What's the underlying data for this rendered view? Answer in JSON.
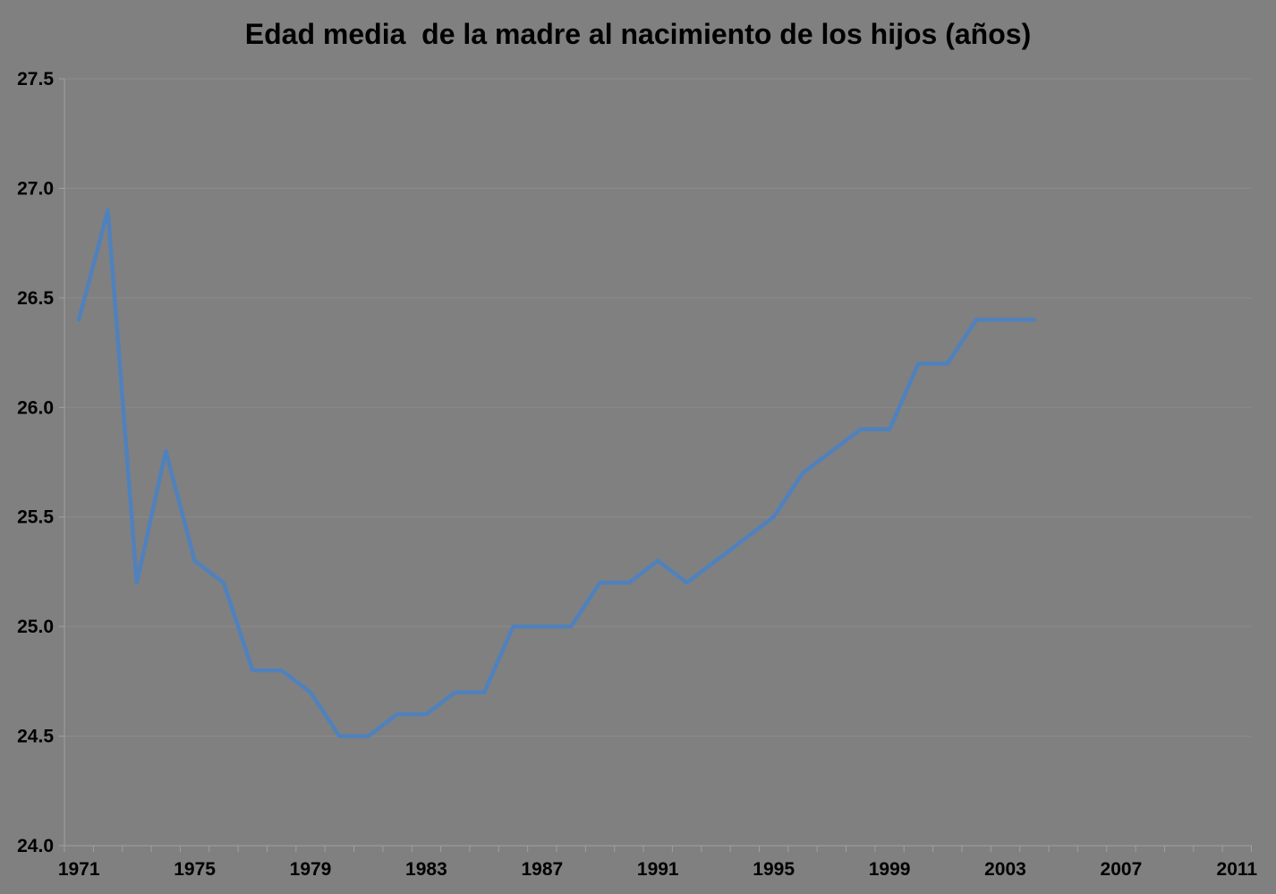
{
  "chart_data": {
    "type": "line",
    "title": "Edad media  de la madre al nacimiento de los hijos (años)",
    "xlabel": "",
    "ylabel": "",
    "x": [
      1971,
      1972,
      1973,
      1974,
      1975,
      1976,
      1977,
      1978,
      1979,
      1980,
      1981,
      1982,
      1983,
      1984,
      1985,
      1986,
      1987,
      1988,
      1989,
      1990,
      1991,
      1992,
      1993,
      1994,
      1995,
      1996,
      1997,
      1998,
      1999,
      2000,
      2001,
      2002,
      2003,
      2004
    ],
    "values": [
      26.4,
      26.9,
      25.2,
      25.8,
      25.3,
      25.2,
      24.8,
      24.8,
      24.7,
      24.5,
      24.5,
      24.6,
      24.6,
      24.7,
      24.7,
      25.0,
      25.0,
      25.0,
      25.2,
      25.2,
      25.3,
      25.2,
      25.3,
      25.4,
      25.5,
      25.7,
      25.8,
      25.9,
      25.9,
      26.2,
      26.2,
      26.4,
      26.4,
      26.4
    ],
    "ylim": [
      24.0,
      27.5
    ],
    "y_tick_step": 0.5,
    "y_ticks": [
      "24.0",
      "24.5",
      "25.0",
      "25.5",
      "26.0",
      "26.5",
      "27.0",
      "27.5"
    ],
    "x_axis_years": [
      1971,
      2011
    ],
    "x_ticks": [
      "1971",
      "1975",
      "1979",
      "1983",
      "1987",
      "1991",
      "1995",
      "1999",
      "2003",
      "2007",
      "2011"
    ],
    "grid": "horizontal-on",
    "legend": "none",
    "colors": {
      "background": "#808080",
      "series_line": "#4F81BD",
      "gridline": "#8b8b8b",
      "axis": "#a0a0a0",
      "text": "#000000"
    }
  }
}
